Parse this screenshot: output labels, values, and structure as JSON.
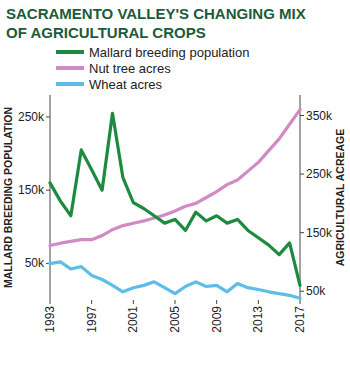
{
  "chart_data": {
    "type": "line",
    "title": "SACRAMENTO VALLEY'S CHANGING MIX OF AGRICULTURAL CROPS",
    "y_label": "MALLARD BREEDING POPULATION",
    "y2_label": "AGRICULTURAL ACREAGE",
    "x": [
      1993,
      1994,
      1995,
      1996,
      1997,
      1998,
      1999,
      2000,
      2001,
      2002,
      2003,
      2004,
      2005,
      2006,
      2007,
      2008,
      2009,
      2010,
      2011,
      2012,
      2013,
      2014,
      2015,
      2016,
      2017
    ],
    "xlim": [
      1993,
      2017
    ],
    "xticks": [
      1993,
      1997,
      2001,
      2005,
      2009,
      2013,
      2017
    ],
    "ylim": [
      0,
      280000
    ],
    "yticks": [
      {
        "value": 50000,
        "label": "50k"
      },
      {
        "value": 150000,
        "label": "150k"
      },
      {
        "value": 250000,
        "label": "250k"
      }
    ],
    "y2lim": [
      35000,
      385000
    ],
    "y2ticks": [
      {
        "value": 50000,
        "label": "50k"
      },
      {
        "value": 150000,
        "label": "150k"
      },
      {
        "value": 250000,
        "label": "250k"
      },
      {
        "value": 350000,
        "label": "350k"
      }
    ],
    "grid": false,
    "legend": "top-left",
    "series": [
      {
        "name": "Mallard breeding population",
        "color": "#1e8a3e",
        "values": [
          160000,
          135000,
          115000,
          205000,
          178000,
          150000,
          255000,
          167000,
          133000,
          125000,
          115000,
          105000,
          110000,
          95000,
          120000,
          108000,
          115000,
          105000,
          110000,
          95000,
          85000,
          75000,
          62000,
          78000,
          20000
        ]
      },
      {
        "name": "Nut tree acres",
        "color": "#d18ac6",
        "axis": "y2",
        "values": [
          128000,
          132000,
          135000,
          138000,
          138000,
          145000,
          155000,
          162000,
          166000,
          170000,
          175000,
          180000,
          187000,
          195000,
          200000,
          210000,
          220000,
          232000,
          240000,
          255000,
          270000,
          290000,
          310000,
          335000,
          360000
        ]
      },
      {
        "name": "Wheat acres",
        "color": "#5cbde6",
        "axis": "y2",
        "values": [
          97000,
          100000,
          88000,
          92000,
          77000,
          70000,
          60000,
          49000,
          56000,
          60000,
          66000,
          56000,
          46000,
          58000,
          66000,
          58000,
          60000,
          49000,
          63000,
          56000,
          53000,
          49000,
          46000,
          43000,
          38000
        ]
      }
    ]
  }
}
